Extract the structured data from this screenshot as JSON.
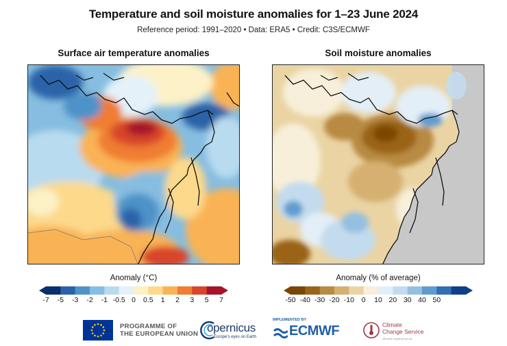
{
  "header": {
    "title": "Temperature and soil moisture anomalies for 1–23 June 2024",
    "subtitle": "Reference period: 1991–2020 • Data: ERA5 • Credit: C3S/ECMWF"
  },
  "left_panel": {
    "title": "Surface air temperature anomalies",
    "colorbar_title": "Anomaly (°C)",
    "ticks": [
      "-7",
      "-5",
      "-3",
      "-2",
      "-1",
      "-0.5",
      "0",
      "0.5",
      "1",
      "2",
      "3",
      "5",
      "7"
    ],
    "colors": [
      "#08306b",
      "#2a63a8",
      "#4e93c7",
      "#86bde0",
      "#b9dbef",
      "#e4f1f9",
      "#fdf1c7",
      "#fcd98b",
      "#f9b354",
      "#ef7d33",
      "#d8452a",
      "#a6132a"
    ]
  },
  "right_panel": {
    "title": "Soil moisture anomalies",
    "colorbar_title": "Anomaly (% of average)",
    "ticks": [
      "-50",
      "-40",
      "-30",
      "-20",
      "-10",
      "0",
      "10",
      "20",
      "30",
      "40",
      "50"
    ],
    "colors": [
      "#7b4605",
      "#9a6319",
      "#b88a42",
      "#d5b070",
      "#ead4a4",
      "#f7efd9",
      "#e3eef6",
      "#c3dbee",
      "#94bfe0",
      "#5e9ccf",
      "#2f6fb3",
      "#0e3f88"
    ]
  },
  "footer": {
    "eu_text_1": "PROGRAMME OF",
    "eu_text_2": "THE EUROPEAN UNION",
    "copernicus": "opernicus",
    "copernicus_tagline": "Europe's eyes on Earth",
    "ecmwf_small": "IMPLEMENTED BY",
    "ecmwf": "ECMWF",
    "c3s_1": "Climate",
    "c3s_2": "Change Service",
    "c3s_url": "climate.copernicus.eu"
  }
}
